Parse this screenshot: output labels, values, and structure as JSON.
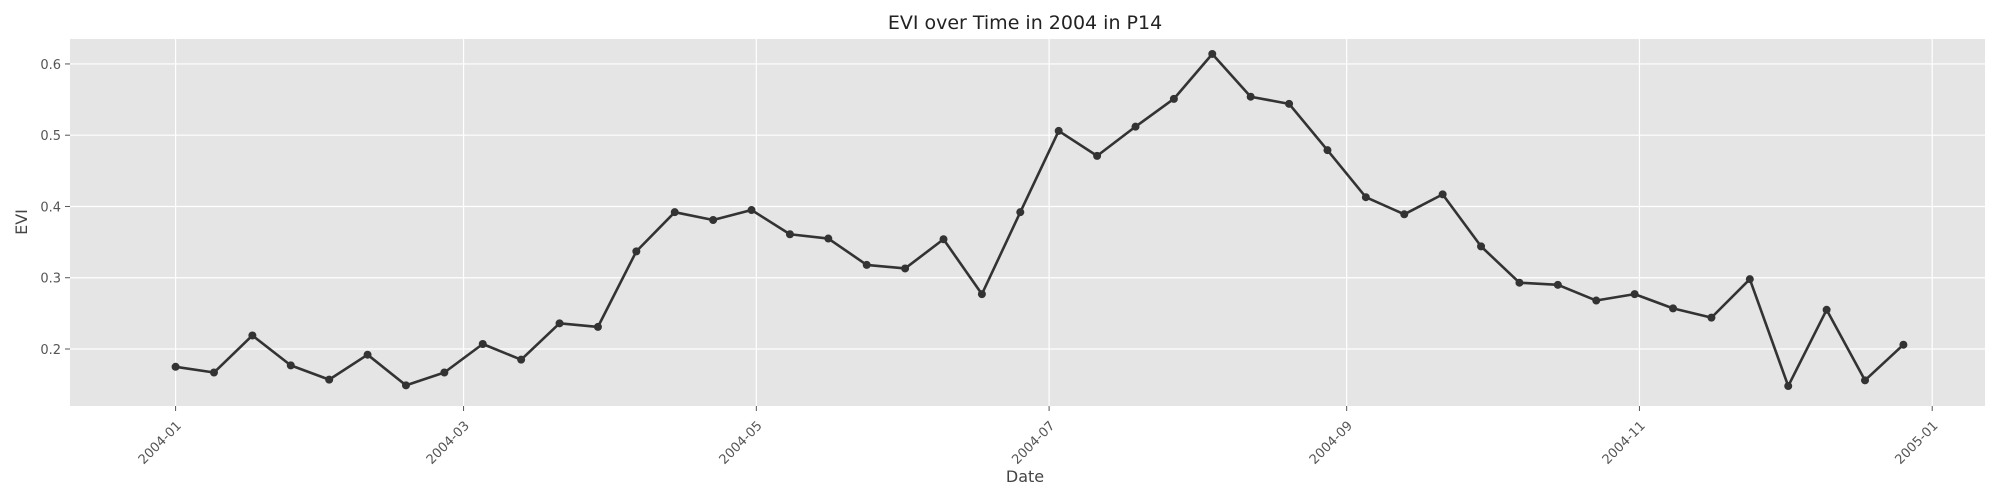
{
  "chart_data": {
    "type": "line",
    "title": "EVI over Time in 2004 in P14",
    "xlabel": "Date",
    "ylabel": "EVI",
    "xlim": [
      "2003-12-10",
      "2005-01-12"
    ],
    "ylim": [
      0.12,
      0.635
    ],
    "x_ticks": [
      "2004-01-01",
      "2004-03-01",
      "2004-05-01",
      "2004-07-01",
      "2004-09-01",
      "2004-11-01",
      "2005-01-01"
    ],
    "x_tick_labels": [
      "2004-01",
      "2004-03",
      "2004-05",
      "2004-07",
      "2004-09",
      "2004-11",
      "2005-01"
    ],
    "y_ticks": [
      0.2,
      0.3,
      0.4,
      0.5,
      0.6
    ],
    "y_tick_labels": [
      "0.2",
      "0.3",
      "0.4",
      "0.5",
      "0.6"
    ],
    "grid": true,
    "line_color": "#333333",
    "plot_background": "#e5e5e5",
    "x": [
      "2004-01-01",
      "2004-01-09",
      "2004-01-17",
      "2004-01-25",
      "2004-02-02",
      "2004-02-10",
      "2004-02-18",
      "2004-02-26",
      "2004-03-05",
      "2004-03-13",
      "2004-03-21",
      "2004-03-29",
      "2004-04-06",
      "2004-04-14",
      "2004-04-22",
      "2004-04-30",
      "2004-05-08",
      "2004-05-16",
      "2004-05-24",
      "2004-06-01",
      "2004-06-09",
      "2004-06-17",
      "2004-06-25",
      "2004-07-03",
      "2004-07-11",
      "2004-07-19",
      "2004-07-27",
      "2004-08-04",
      "2004-08-12",
      "2004-08-20",
      "2004-08-28",
      "2004-09-05",
      "2004-09-13",
      "2004-09-21",
      "2004-09-29",
      "2004-10-07",
      "2004-10-15",
      "2004-10-23",
      "2004-10-31",
      "2004-11-08",
      "2004-11-16",
      "2004-11-24",
      "2004-12-02",
      "2004-12-10",
      "2004-12-18",
      "2004-12-26"
    ],
    "y": [
      0.175,
      0.167,
      0.219,
      0.177,
      0.157,
      0.192,
      0.149,
      0.167,
      0.207,
      0.185,
      0.236,
      0.231,
      0.337,
      0.392,
      0.381,
      0.395,
      0.361,
      0.355,
      0.318,
      0.313,
      0.354,
      0.277,
      0.392,
      0.506,
      0.471,
      0.512,
      0.551,
      0.614,
      0.554,
      0.544,
      0.479,
      0.413,
      0.389,
      0.417,
      0.344,
      0.293,
      0.29,
      0.268,
      0.277,
      0.257,
      0.244,
      0.298,
      0.148,
      0.255,
      0.156,
      0.206
    ]
  }
}
